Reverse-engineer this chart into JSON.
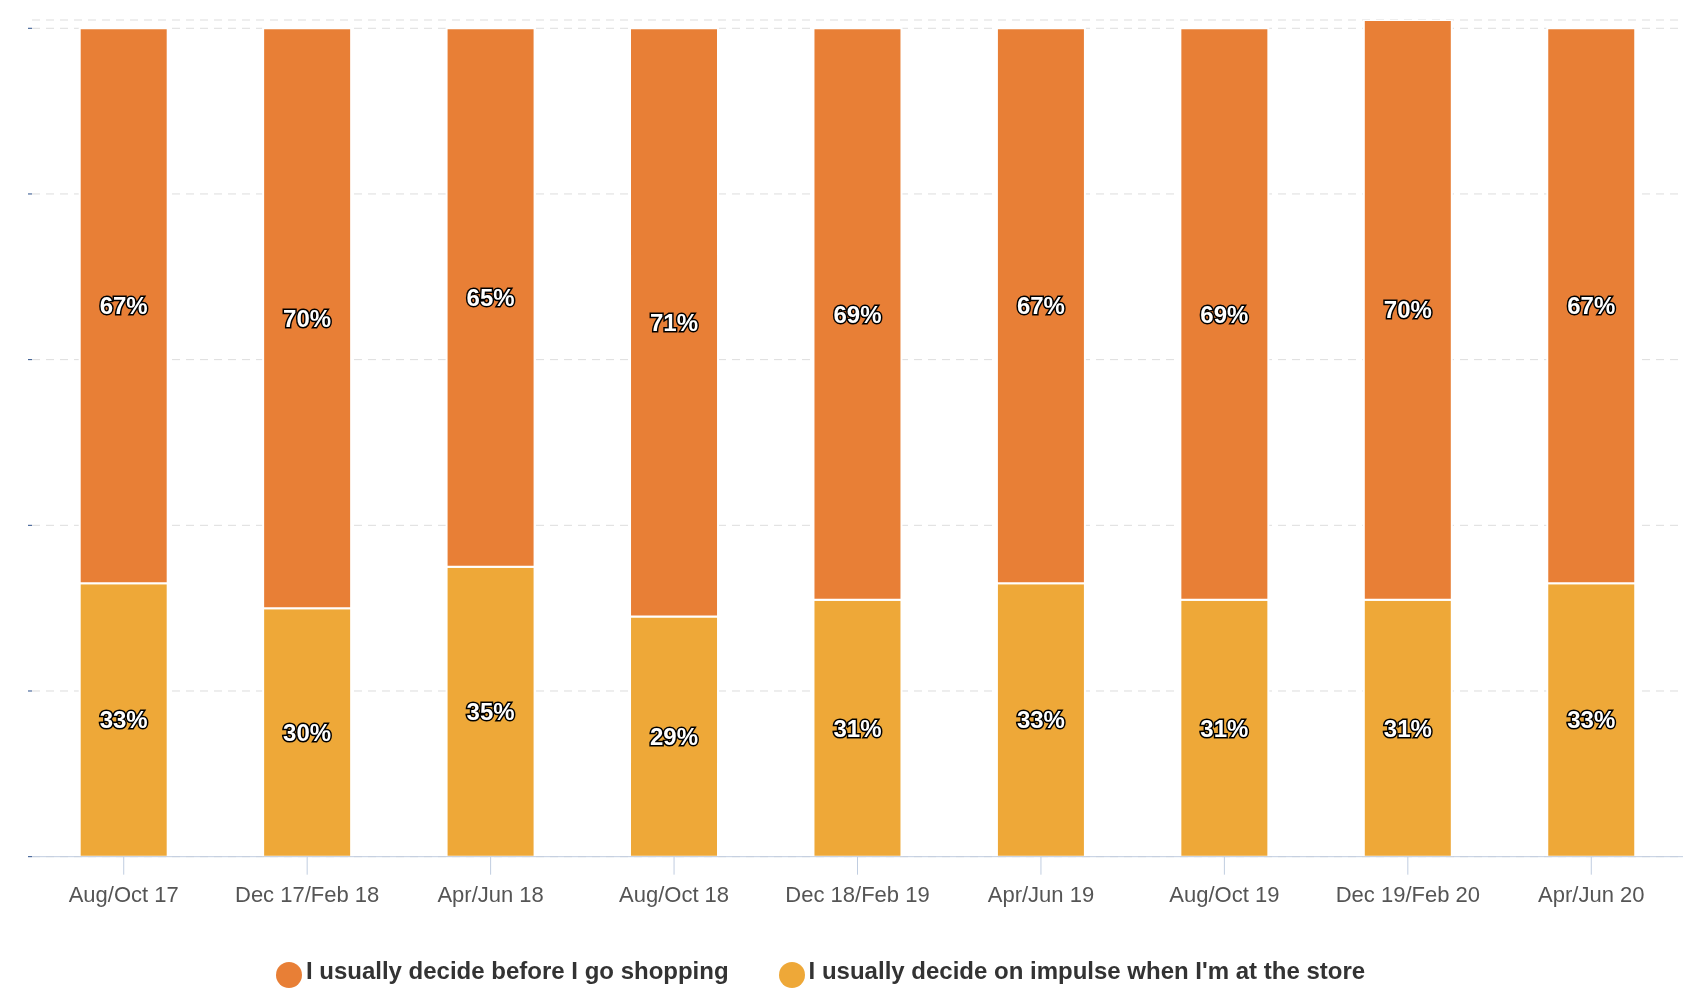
{
  "chart_data": {
    "type": "bar",
    "stacked": true,
    "categories": [
      "Aug/Oct 17",
      "Dec 17/Feb 18",
      "Apr/Jun 18",
      "Aug/Oct 18",
      "Dec 18/Feb 19",
      "Apr/Jun 19",
      "Aug/Oct 19",
      "Dec 19/Feb 20",
      "Apr/Jun 20"
    ],
    "series": [
      {
        "name": "I usually decide on impulse when I'm at the store",
        "color": "#eea838",
        "values": [
          33,
          30,
          35,
          29,
          31,
          33,
          31,
          31,
          33
        ],
        "value_labels": [
          "33%",
          "30%",
          "35%",
          "29%",
          "31%",
          "33%",
          "31%",
          "31%",
          "33%"
        ]
      },
      {
        "name": "I usually decide before I go shopping",
        "color": "#e87f36",
        "values": [
          67,
          70,
          65,
          71,
          69,
          67,
          69,
          70,
          67
        ],
        "value_labels": [
          "67%",
          "70%",
          "65%",
          "71%",
          "69%",
          "67%",
          "69%",
          "70%",
          "67%"
        ]
      }
    ],
    "ylim": [
      0,
      101
    ],
    "yticks": [
      {
        "value": 0,
        "label": null
      },
      {
        "value": 20,
        "label": null
      },
      {
        "value": 40,
        "label": null
      },
      {
        "value": 60,
        "label": null
      },
      {
        "value": 80,
        "label": null
      },
      {
        "value": 100,
        "label": null
      }
    ],
    "tick_labels": "x",
    "grid": "y",
    "legend": "bottom"
  }
}
